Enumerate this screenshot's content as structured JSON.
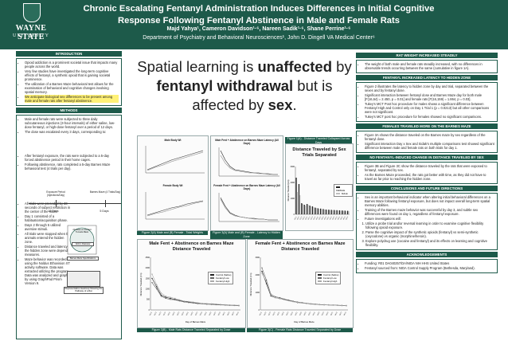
{
  "header": {
    "university_line1": "WAYNE STATE",
    "university_line2": "UNIVERSITY",
    "title_line1": "Chronic Escalating Fentanyl Administration Induces Differences in Initial Cognitive",
    "title_line2": "Response Following Fentanyl Abstinence in Male and Female Rats",
    "authors": "Majd Yahya¹, Cameron Davidson¹·⁶, Nareen Sadik¹·⁶, Shane Perrine¹·⁶",
    "department": "Department of Psychiatry and Behavioral Neurosciences¹, John D. Dingell VA Medical Center⁶"
  },
  "left": {
    "intro_heading": "INTRODUCTION",
    "intro_items": [
      "Opioid addiction is a prominent societal issue that impacts many people across the world.",
      "Very few studies have investigated the long-term cognitive effects of fentanyl, a synthetic opioid that is gaining societal prominence.",
      "The utilization of a Barnes Maze behavioral test allows for the examination of behavioral and cognitive changes involving spatial memory.",
      "We anticipate biological sex differences to be present among male and female rats after fentanyl abstinence."
    ],
    "methods_heading": "METHODS",
    "methods_items_top": [
      "Male and female rats were subjected to three daily subcutaneous injections (3-hour intervals) of either saline, low-dose fentanyl, or high-dose fentanyl over a period of 12 days.",
      "The dose was escalated every 3 days, corresponding to:"
    ],
    "methods_items_mid": [
      "After fentanyl exposure, the rats were subjected to a 5-day forced abstinence period in their home cages.",
      "Following abstinence, rats completed a 5-day Barnes Maze behavioral test (4 trials per day)."
    ],
    "timeline": {
      "exposure_label": "Exposure Period (Injections/Day)",
      "maze_label": "Barnes Maze (4 Trials/Day)",
      "days_exposure": "12 Days",
      "days_maze": "5 Days"
    },
    "methods_items_bottom": [
      "All trials were preceded by 30 seconds of subject restriction in the center of the maze.",
      "Day 1 consisted of a habituation/acquisition phase.",
      "Days 2 through 5 utilized aversive stimuli.",
      "All trials were stopped when the animals entered the hidden zone.",
      "Distance traveled and latency to the hidden zone were dependent measures.",
      "Maze behavior was recorded using the Noldus Ethovision XT activity software. Data was extracted utilizing the program. Data was analyzed and graphed by using GraphPad Prism Version 9."
    ],
    "maze_labels": {
      "holes": "20 Holes on the Exit Tunnels Maze",
      "diameter": "122cm Diameter",
      "spec_caption": "Barnes Maze Specifications",
      "heatmap_caption": "Representative Heatmap Showing the Pathway of a Rat"
    }
  },
  "center": {
    "headline_part1": "Spatial learning is ",
    "headline_bold1": "unaffected",
    "headline_part2": " by ",
    "headline_bold2": "fentanyl withdrawal",
    "headline_part3": " but is affected by ",
    "headline_bold3": "sex",
    "headline_end": ".",
    "fig1_title": "Figure 1(A) - Distance Traveled Collapsed Across Days",
    "fig1_chart_title": "Distance Traveled by Sex Trials Separated",
    "fig2_caption": "Figure 2(A) Male and (B) Female - Total Weights",
    "fig3_caption": "Figure 3(A) Male and (B) Female - Latency to Hidden Zone",
    "fig4_caption": "Figure 3(B) - Male Rats Distance Traveled Separated by Dose",
    "fig5_caption": "Figure 3(C) - Female Rats Distance Traveled Separated by Dose",
    "male_weight_title": "Male Body Wt",
    "female_weight_title": "Female Body Wt",
    "male_latency_title": "Male Fent + Abstinence on Barnes Maze Latency (All Days)",
    "female_latency_title": "Female Fent + Abstinence on Barnes Maze Latency (All Days)",
    "male_dist_title": "Male Fent + Abstinence on Barnes Maze Distance Traveled",
    "female_dist_title": "Female Fent + Abstinence on Barnes Maze Distance Traveled",
    "dist_ylabel": "Distance Traveled (cm)",
    "xlabel_days": "Day of Barnes Maze",
    "legend_sex": [
      "FEMALE",
      "MALE"
    ],
    "legend_dose": [
      "Control (Saline)",
      "Fentanyl Low",
      "Fentanyl High"
    ]
  },
  "right": {
    "h1": "RAT WEIGHT INCREASED STEADILY",
    "p1": [
      "The weight of both male and female rats steadily increased, with no differences in observable trends occurring between the same (cumulative in figure 1A)."
    ],
    "h2": "FENTANYL INCREASED LATENCY TO HIDDEN ZONE",
    "p2": [
      "Figure 2 illustrates the latency to hidden zone by day and trial, separated between the sexes and by fentanyl dose.",
      "Significant interaction between fentanyl dose and Barnes Maze day for both male [F(16,64) = 2.450, p = 0.01] and female rats [F(16,159) = 1.864, p = 0.03].",
      "Tukey's MCT Post hoc procedure for males shows a significant difference between Fentanyl High and Control only on Day 1 Trial 1 (p = 0.0213) but all other comparisons were not significant.",
      "Tukey's MCT post hoc procedure for females showed no significant comparisons."
    ],
    "h3": "FEMALES TRAVELED MORE ON THE BARNES MAZE",
    "p3": [
      "Figure 3A shows the distance traveled on the Barnes maze by sex regardless of the fentanyl dose.",
      "Significant interaction Day x Sex and Sidak's multiple comparisons test showed significant difference between male and female rats on both trials for day 1."
    ],
    "h4": "NO FENTANYL-INDUCED CHANGE IN DISTANCE TRAVELED BY SEX",
    "p4": [
      "Figure 3B and Figure 3C show the distance traveled by the rats that were exposed to fentanyl, separated by sex.",
      "As the Barnes Maze proceeded, the rats got better with time, as they did not have to travel as far prior to reaching the hidden zone."
    ],
    "h5": "CONCLUSIONS AND FUTURE DIRECTIONS",
    "p5": [
      "Sex is an important behavioral indicator when altering initial behavioral differences on a Barnes Maze following fentanyl exposure, but does not impact overall long-term spatial memory abilities.",
      "Training of the Barnes maze behavior was successful by day 3, and subtle sex differences were found on day 1, regardless of fentanyl exposure.",
      "Future investigations will:"
    ],
    "p5_sub": [
      "Utilize a probe trial and/or reversal learning in order to examine cognitive flexibility following opioid exposure.",
      "Parse the cognitive impact of the synthetic opioids (fentanyl) vs semi-synthetic (oxycodone) vs organic (morphine/heroin).",
      "Explore polydrug use (cocaine and fentanyl) and its effects on learning and cognitive flexibility."
    ],
    "h6": "ACKNOWLEDGEMENTS",
    "p6": [
      "Funding: R01 DA040257/DA/NIDA NIH HHS United States",
      "Fentanyl sourced from: NIDA Control Supply Program (Bethesda, Maryland)."
    ]
  },
  "chart_data": [
    {
      "type": "bar",
      "title": "Distance Traveled by Sex Trials Separated",
      "categories": [
        "D1T1",
        "D1T2",
        "D1T3",
        "D1T4",
        "D2T1",
        "D2T2",
        "D2T3",
        "D2T4",
        "D3T1",
        "D3T2",
        "D3T3",
        "D3T4",
        "D4T1",
        "D4T2",
        "D4T3",
        "D4T4",
        "D5T1",
        "D5T2",
        "D5T3",
        "D5T4"
      ],
      "series": [
        {
          "name": "FEMALE",
          "values": [
            2300,
            1900,
            700,
            600,
            650,
            550,
            500,
            420,
            380,
            360,
            330,
            300,
            290,
            280,
            270,
            260,
            250,
            240,
            230,
            220
          ]
        },
        {
          "name": "MALE",
          "values": [
            1400,
            1200,
            650,
            550,
            600,
            500,
            450,
            400,
            350,
            330,
            300,
            280,
            270,
            260,
            250,
            240,
            230,
            220,
            210,
            200
          ]
        }
      ],
      "ylabel": "Distance Traveled (cm)",
      "ylim": [
        0,
        3000
      ]
    },
    {
      "type": "line",
      "title": "Male Fent + Abstinence on Barnes Maze Distance Traveled",
      "x": [
        1,
        2,
        3,
        4,
        5,
        6,
        7,
        8,
        9,
        10,
        11,
        12,
        13,
        14,
        15,
        16,
        17,
        18,
        19,
        20
      ],
      "series": [
        {
          "name": "Control (Saline)",
          "values": [
            1500,
            1100,
            700,
            600,
            550,
            500,
            450,
            400,
            380,
            350,
            320,
            300,
            290,
            280,
            260,
            250,
            240,
            230,
            220,
            210
          ]
        },
        {
          "name": "Fentanyl Low",
          "values": [
            1300,
            1000,
            650,
            550,
            500,
            480,
            430,
            380,
            350,
            330,
            300,
            290,
            270,
            260,
            250,
            240,
            230,
            220,
            210,
            200
          ]
        },
        {
          "name": "Fentanyl High",
          "values": [
            1700,
            1200,
            800,
            650,
            600,
            550,
            480,
            420,
            400,
            370,
            340,
            310,
            300,
            290,
            280,
            260,
            250,
            240,
            230,
            220
          ]
        }
      ],
      "ylabel": "Distance Traveled (cm)",
      "xlabel": "Day of Barnes Maze",
      "ylim": [
        0,
        2500
      ]
    },
    {
      "type": "line",
      "title": "Female Fent + Abstinence on Barnes Maze Distance Traveled",
      "x": [
        1,
        2,
        3,
        4,
        5,
        6,
        7,
        8,
        9,
        10,
        11,
        12,
        13,
        14,
        15,
        16,
        17,
        18,
        19,
        20
      ],
      "series": [
        {
          "name": "Control (Saline)",
          "values": [
            2200,
            1500,
            800,
            700,
            650,
            600,
            550,
            480,
            420,
            400,
            370,
            340,
            320,
            300,
            290,
            280,
            270,
            260,
            250,
            240
          ]
        },
        {
          "name": "Fentanyl Low",
          "values": [
            2400,
            1700,
            900,
            750,
            700,
            620,
            560,
            500,
            450,
            420,
            380,
            350,
            330,
            310,
            300,
            290,
            280,
            270,
            260,
            250
          ]
        },
        {
          "name": "Fentanyl High",
          "values": [
            2100,
            1600,
            850,
            700,
            650,
            580,
            520,
            470,
            430,
            400,
            360,
            330,
            310,
            300,
            290,
            280,
            270,
            260,
            250,
            240
          ]
        }
      ],
      "ylabel": "Distance Traveled (cm)",
      "xlabel": "Day of Barnes Maze",
      "ylim": [
        0,
        3000
      ]
    }
  ],
  "colors": {
    "header": "#1d5a4a",
    "female": "#222222",
    "male": "#bdbdbd",
    "control": "#222222",
    "low": "#666666",
    "high": "#aaaaaa"
  }
}
